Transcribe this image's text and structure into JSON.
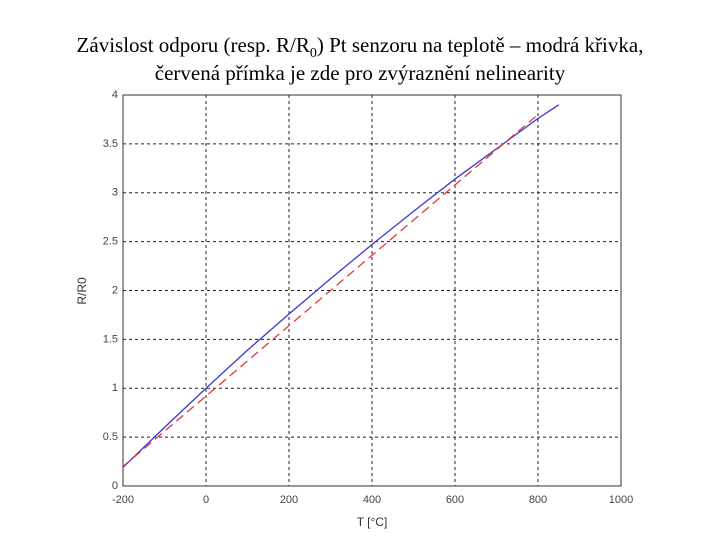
{
  "chart_data": {
    "type": "line",
    "title": [
      "Závislost odporu (resp. R/R",
      "0",
      ") Pt senzoru na teplotě – modrá křivka,",
      "červená přímka je zde pro zvýraznění nelinearity"
    ],
    "xlabel": "T [°C]",
    "ylabel": "R/R0",
    "xlim": [
      -200,
      1000
    ],
    "xticks": [
      -200,
      0,
      200,
      400,
      600,
      800,
      1000
    ],
    "ylim": [
      0,
      4
    ],
    "yticks": [
      0,
      0.5,
      1,
      1.5,
      2,
      2.5,
      3,
      3.5,
      4
    ],
    "grid": true,
    "series": [
      {
        "color": "#3a3ad0",
        "dashed": false,
        "x": [
          -200,
          -100,
          0,
          100,
          200,
          300,
          400,
          500,
          600,
          700,
          800,
          850
        ],
        "values": [
          0.19,
          0.6,
          1,
          1.39,
          1.76,
          2.12,
          2.47,
          2.81,
          3.14,
          3.45,
          3.76,
          3.9
        ]
      },
      {
        "color": "#e03a3a",
        "dashed": true,
        "x": [
          -200,
          800
        ],
        "values": [
          0.2,
          3.8
        ]
      }
    ]
  }
}
